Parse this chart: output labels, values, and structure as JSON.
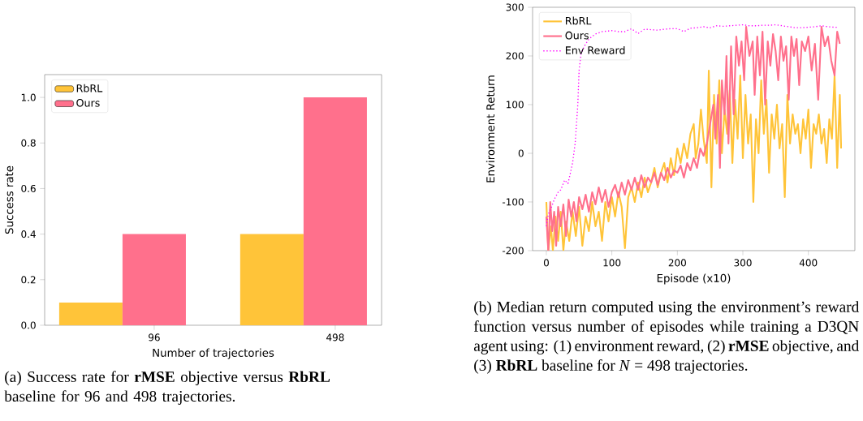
{
  "chart_data": [
    {
      "type": "bar",
      "categories": [
        "96",
        "498"
      ],
      "xlabel": "Number of trajectories",
      "ylabel": "Success rate",
      "ylim": [
        0,
        1.1
      ],
      "yticks": [
        {
          "value": 0,
          "label": "0.0"
        },
        0.2,
        0.4,
        0.6,
        0.8,
        {
          "value": 1,
          "label": "1.0"
        }
      ],
      "legend": "top left",
      "grid": false,
      "series": [
        {
          "name": "RbRL",
          "color": "#ffc439",
          "values": [
            0.1,
            0.4
          ]
        },
        {
          "name": "Ours",
          "color": "#ff708c",
          "values": [
            0.4,
            1.0
          ]
        }
      ],
      "annotations": [
        "(a) Success rate for **rMSE** objective versus **RbRL** baseline for 96 and 498 trajectories."
      ]
    },
    {
      "type": "line",
      "xlabel": "Episode (x10)",
      "ylabel": "Environment Return",
      "xlim": [
        -21,
        471
      ],
      "xticks": [
        0,
        100,
        200,
        300,
        400
      ],
      "ylim": [
        -200,
        300
      ],
      "yticks": [
        -200,
        -100,
        0,
        100,
        200,
        300
      ],
      "legend": "top left",
      "grid": false,
      "marker": "none",
      "series": [
        {
          "name": "RbRL",
          "color": "#ffc439",
          "line_style": "solid",
          "x": [
            0,
            3,
            7,
            10,
            14,
            18,
            22,
            26,
            30,
            35,
            40,
            45,
            50,
            55,
            60,
            65,
            70,
            75,
            80,
            85,
            90,
            95,
            100,
            105,
            110,
            115,
            120,
            125,
            130,
            135,
            140,
            145,
            150,
            155,
            160,
            165,
            170,
            175,
            180,
            185,
            190,
            195,
            200,
            205,
            210,
            215,
            220,
            225,
            228,
            232,
            236,
            240,
            245,
            248,
            252,
            256,
            260,
            264,
            268,
            272,
            276,
            280,
            284,
            288,
            292,
            296,
            300,
            304,
            308,
            312,
            316,
            320,
            324,
            328,
            332,
            336,
            340,
            344,
            348,
            352,
            356,
            360,
            364,
            368,
            372,
            376,
            380,
            384,
            388,
            392,
            396,
            400,
            404,
            408,
            412,
            416,
            420,
            424,
            428,
            432,
            436,
            440,
            444,
            448,
            450
          ],
          "values": [
            -100,
            -200,
            -150,
            -200,
            -130,
            -180,
            -120,
            -200,
            -140,
            -180,
            -120,
            -170,
            -110,
            -190,
            -130,
            -160,
            -100,
            -150,
            -120,
            -180,
            -100,
            -140,
            -90,
            -130,
            -80,
            -110,
            -195,
            -90,
            -70,
            -100,
            -60,
            -90,
            -50,
            -80,
            -60,
            -30,
            -70,
            -40,
            -20,
            -60,
            -10,
            -45,
            10,
            -20,
            20,
            -10,
            40,
            60,
            -10,
            20,
            90,
            30,
            -20,
            170,
            -70,
            120,
            20,
            150,
            0,
            90,
            40,
            130,
            -20,
            110,
            30,
            160,
            -10,
            120,
            20,
            80,
            -100,
            70,
            0,
            150,
            40,
            110,
            -40,
            80,
            30,
            100,
            10,
            60,
            -90,
            120,
            20,
            80,
            40,
            60,
            0,
            70,
            30,
            90,
            -30,
            60,
            40,
            80,
            20,
            50,
            -20,
            70,
            30,
            160,
            -30,
            120,
            10
          ]
        },
        {
          "name": "Ours",
          "color": "#ff708c",
          "line_style": "solid",
          "x": [
            0,
            3,
            6,
            9,
            12,
            15,
            18,
            22,
            26,
            30,
            34,
            38,
            42,
            46,
            50,
            55,
            60,
            65,
            70,
            75,
            80,
            85,
            90,
            95,
            100,
            105,
            110,
            115,
            120,
            125,
            130,
            135,
            140,
            145,
            150,
            155,
            160,
            165,
            170,
            175,
            180,
            185,
            190,
            195,
            200,
            205,
            210,
            215,
            220,
            225,
            230,
            235,
            240,
            245,
            250,
            255,
            258,
            262,
            265,
            268,
            272,
            275,
            278,
            282,
            286,
            290,
            294,
            298,
            302,
            305,
            310,
            315,
            318,
            322,
            326,
            330,
            334,
            338,
            342,
            346,
            350,
            354,
            358,
            362,
            366,
            370,
            374,
            378,
            382,
            386,
            390,
            395,
            400,
            405,
            410,
            415,
            420,
            425,
            430,
            435,
            440,
            444,
            448
          ],
          "values": [
            -130,
            -200,
            -100,
            -160,
            -120,
            -190,
            -110,
            -150,
            -105,
            -170,
            -95,
            -130,
            -100,
            -140,
            -90,
            -115,
            -85,
            -120,
            -80,
            -105,
            -70,
            -100,
            -75,
            -110,
            -80,
            -65,
            -90,
            -60,
            -85,
            -55,
            -75,
            -50,
            -75,
            -45,
            -70,
            -50,
            -60,
            -40,
            -65,
            -40,
            -55,
            -30,
            -50,
            -35,
            -40,
            -25,
            -50,
            -20,
            -35,
            -10,
            -30,
            10,
            -5,
            20,
            60,
            100,
            30,
            120,
            -30,
            150,
            80,
            200,
            20,
            220,
            80,
            240,
            180,
            230,
            150,
            260,
            200,
            230,
            120,
            240,
            160,
            250,
            100,
            230,
            180,
            245,
            210,
            150,
            240,
            190,
            220,
            110,
            240,
            200,
            235,
            140,
            230,
            210,
            240,
            170,
            225,
            110,
            260,
            220,
            240,
            190,
            160,
            250,
            225
          ]
        },
        {
          "name": "Env Reward",
          "color": "#ff00ff",
          "line_style": "dotted",
          "x": [
            0,
            3,
            8,
            12,
            18,
            22,
            28,
            30,
            33,
            36,
            40,
            44,
            48,
            50,
            53,
            58,
            65,
            75,
            85,
            100,
            110,
            120,
            130,
            140,
            150,
            160,
            170,
            180,
            190,
            200,
            210,
            220,
            230,
            240,
            250,
            260,
            270,
            280,
            290,
            300,
            310,
            320,
            330,
            340,
            350,
            360,
            370,
            380,
            390,
            400,
            410,
            420,
            430,
            440,
            445
          ],
          "values": [
            -150,
            -125,
            -110,
            -95,
            -80,
            -75,
            -55,
            -58,
            -62,
            -45,
            -20,
            20,
            100,
            170,
            205,
            220,
            235,
            245,
            250,
            252,
            250,
            250,
            256,
            246,
            255,
            254,
            253,
            255,
            256,
            256,
            250,
            257,
            258,
            260,
            258,
            262,
            261,
            262,
            263,
            264,
            262,
            262,
            263,
            263,
            264,
            262,
            260,
            258,
            258,
            259,
            260,
            262,
            260,
            259,
            259
          ]
        }
      ],
      "annotations": [
        "(b) Median return computed using the environment’s reward function versus number of episodes while training a D3QN agent using: (1) environment reward, (2) **rMSE** objective, and (3) **RbRL** baseline for *N* = 498 trajectories."
      ]
    }
  ]
}
